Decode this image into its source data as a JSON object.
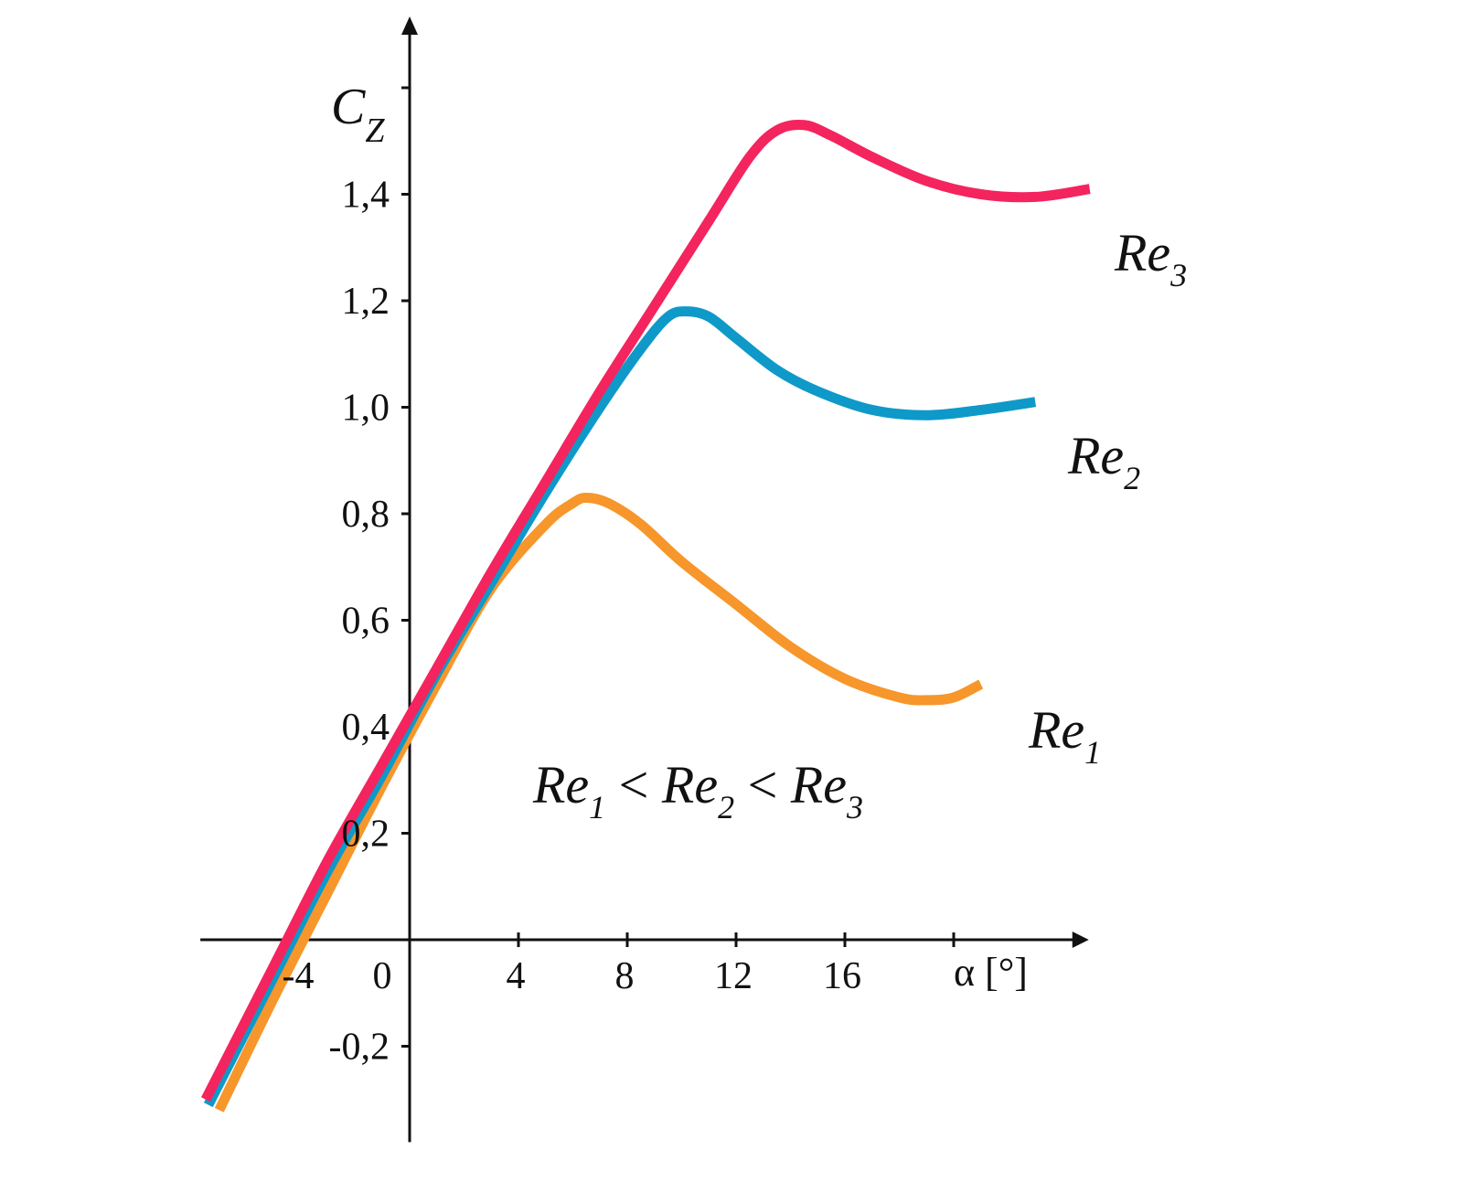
{
  "chart_data": {
    "type": "line",
    "ylabel_main": "C",
    "ylabel_sub": "Z",
    "xlabel": "α [°]",
    "xlim": [
      -4.5,
      25
    ],
    "ylim": [
      -0.38,
      1.78
    ],
    "x_ticks": [
      {
        "value": 0,
        "label": "0"
      },
      {
        "value": 4,
        "label": "4"
      },
      {
        "value": 8,
        "label": "8"
      },
      {
        "value": 12,
        "label": "12"
      },
      {
        "value": 16,
        "label": "16"
      },
      {
        "value": 20,
        "label": ""
      }
    ],
    "x_tick_partial_label": {
      "value": -4,
      "label": "-4"
    },
    "y_ticks": [
      {
        "value": -0.2,
        "label": "-0,2"
      },
      {
        "value": 0.2,
        "label": "0,2"
      },
      {
        "value": 0.4,
        "label": "0,4"
      },
      {
        "value": 0.6,
        "label": "0,6"
      },
      {
        "value": 0.8,
        "label": "0,8"
      },
      {
        "value": 1.0,
        "label": "1,0"
      },
      {
        "value": 1.2,
        "label": "1,2"
      },
      {
        "value": 1.4,
        "label": "1,4"
      },
      {
        "value": 1.6,
        "label": ""
      }
    ],
    "relation_text": {
      "base": "Re",
      "sub1": "1",
      "op": "<",
      "sub2": "2",
      "sub3": "3"
    },
    "series": [
      {
        "name_base": "Re",
        "name_sub": "1",
        "color": "#F7962B",
        "points": [
          [
            -7.0,
            -0.32
          ],
          [
            -5.0,
            -0.11
          ],
          [
            -3.0,
            0.09
          ],
          [
            -1.0,
            0.29
          ],
          [
            1.0,
            0.48
          ],
          [
            3.0,
            0.66
          ],
          [
            5.0,
            0.78
          ],
          [
            6.0,
            0.82
          ],
          [
            6.5,
            0.83
          ],
          [
            7.3,
            0.82
          ],
          [
            8.5,
            0.78
          ],
          [
            10.0,
            0.71
          ],
          [
            12.0,
            0.63
          ],
          [
            14.0,
            0.55
          ],
          [
            16.0,
            0.49
          ],
          [
            18.0,
            0.455
          ],
          [
            19.0,
            0.45
          ],
          [
            20.0,
            0.455
          ],
          [
            21.0,
            0.48
          ]
        ]
      },
      {
        "name_base": "Re",
        "name_sub": "2",
        "color": "#0E99C9",
        "points": [
          [
            -7.4,
            -0.31
          ],
          [
            -5.0,
            -0.07
          ],
          [
            -3.0,
            0.13
          ],
          [
            -1.0,
            0.31
          ],
          [
            1.0,
            0.5
          ],
          [
            3.0,
            0.67
          ],
          [
            5.0,
            0.84
          ],
          [
            7.0,
            1.0
          ],
          [
            8.5,
            1.11
          ],
          [
            9.5,
            1.17
          ],
          [
            10.2,
            1.18
          ],
          [
            11.0,
            1.17
          ],
          [
            12.0,
            1.13
          ],
          [
            13.5,
            1.07
          ],
          [
            15.0,
            1.03
          ],
          [
            17.0,
            0.995
          ],
          [
            19.0,
            0.985
          ],
          [
            21.0,
            0.995
          ],
          [
            23.0,
            1.01
          ]
        ]
      },
      {
        "name_base": "Re",
        "name_sub": "3",
        "color": "#F4245E",
        "points": [
          [
            -7.5,
            -0.3
          ],
          [
            -5.0,
            -0.05
          ],
          [
            -3.0,
            0.15
          ],
          [
            -1.0,
            0.33
          ],
          [
            1.0,
            0.51
          ],
          [
            3.0,
            0.69
          ],
          [
            5.0,
            0.86
          ],
          [
            7.0,
            1.03
          ],
          [
            9.0,
            1.19
          ],
          [
            11.0,
            1.35
          ],
          [
            12.5,
            1.47
          ],
          [
            13.5,
            1.52
          ],
          [
            14.5,
            1.53
          ],
          [
            15.5,
            1.51
          ],
          [
            17.0,
            1.47
          ],
          [
            19.0,
            1.425
          ],
          [
            21.0,
            1.4
          ],
          [
            23.0,
            1.395
          ],
          [
            25.0,
            1.41
          ]
        ]
      }
    ],
    "grid": false,
    "legend": "labels next to curve ends"
  }
}
